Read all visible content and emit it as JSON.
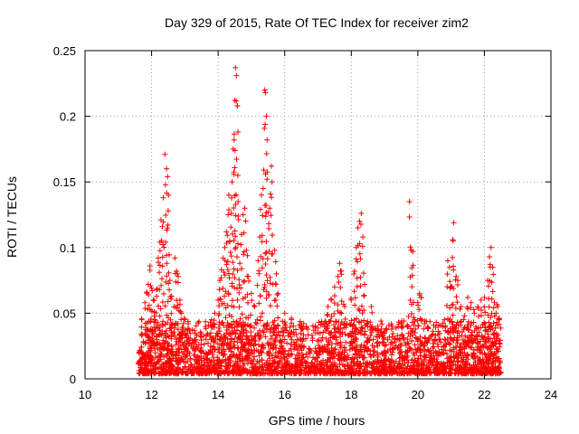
{
  "chart_data": {
    "type": "scatter",
    "title": "Day 329 of 2015, Rate Of TEC Index for receiver zim2",
    "xlabel": "GPS time / hours",
    "ylabel": "ROTI / TECUs",
    "xlim": [
      10,
      24
    ],
    "ylim": [
      0,
      0.25
    ],
    "x_ticks": [
      "10",
      "12",
      "14",
      "16",
      "18",
      "20",
      "22",
      "24"
    ],
    "y_ticks": [
      "0",
      "0.05",
      "0.1",
      "0.15",
      "0.2",
      "0.25"
    ],
    "grid": true,
    "marker": "+",
    "series_color": "#ff0000",
    "data_range_x": [
      11.6,
      22.5
    ],
    "series": [
      {
        "points": [
          [
            11.7,
            0.045
          ],
          [
            11.8,
            0.058
          ],
          [
            11.85,
            0.066
          ],
          [
            11.9,
            0.072
          ],
          [
            11.95,
            0.086
          ],
          [
            12.0,
            0.069
          ],
          [
            12.05,
            0.06
          ],
          [
            12.1,
            0.045
          ],
          [
            12.15,
            0.068
          ],
          [
            12.2,
            0.092
          ],
          [
            12.25,
            0.104
          ],
          [
            12.28,
            0.121
          ],
          [
            12.32,
            0.116
          ],
          [
            12.35,
            0.138
          ],
          [
            12.4,
            0.171
          ],
          [
            12.45,
            0.16
          ],
          [
            12.48,
            0.154
          ],
          [
            12.5,
            0.128
          ],
          [
            12.55,
            0.075
          ],
          [
            12.6,
            0.063
          ],
          [
            12.7,
            0.092
          ],
          [
            12.75,
            0.082
          ],
          [
            12.8,
            0.078
          ],
          [
            12.85,
            0.06
          ],
          [
            12.9,
            0.05
          ],
          [
            13.0,
            0.045
          ],
          [
            13.1,
            0.042
          ],
          [
            13.3,
            0.03
          ],
          [
            13.5,
            0.032
          ],
          [
            13.8,
            0.045
          ],
          [
            13.9,
            0.05
          ],
          [
            14.0,
            0.06
          ],
          [
            14.05,
            0.075
          ],
          [
            14.1,
            0.083
          ],
          [
            14.15,
            0.092
          ],
          [
            14.2,
            0.1
          ],
          [
            14.25,
            0.112
          ],
          [
            14.3,
            0.125
          ],
          [
            14.32,
            0.14
          ],
          [
            14.35,
            0.105
          ],
          [
            14.4,
            0.126
          ],
          [
            14.42,
            0.15
          ],
          [
            14.45,
            0.175
          ],
          [
            14.48,
            0.182
          ],
          [
            14.5,
            0.212
          ],
          [
            14.52,
            0.237
          ],
          [
            14.55,
            0.231
          ],
          [
            14.58,
            0.208
          ],
          [
            14.6,
            0.135
          ],
          [
            14.65,
            0.088
          ],
          [
            14.7,
            0.11
          ],
          [
            14.75,
            0.125
          ],
          [
            14.8,
            0.13
          ],
          [
            14.85,
            0.098
          ],
          [
            14.9,
            0.078
          ],
          [
            15.0,
            0.065
          ],
          [
            15.1,
            0.055
          ],
          [
            15.2,
            0.09
          ],
          [
            15.25,
            0.108
          ],
          [
            15.3,
            0.14
          ],
          [
            15.35,
            0.145
          ],
          [
            15.4,
            0.22
          ],
          [
            15.42,
            0.218
          ],
          [
            15.45,
            0.2
          ],
          [
            15.47,
            0.182
          ],
          [
            15.5,
            0.127
          ],
          [
            15.55,
            0.13
          ],
          [
            15.6,
            0.162
          ],
          [
            15.62,
            0.15
          ],
          [
            15.7,
            0.098
          ],
          [
            15.75,
            0.08
          ],
          [
            15.8,
            0.065
          ],
          [
            16.0,
            0.05
          ],
          [
            16.2,
            0.045
          ],
          [
            16.5,
            0.042
          ],
          [
            17.0,
            0.035
          ],
          [
            17.3,
            0.055
          ],
          [
            17.4,
            0.06
          ],
          [
            17.5,
            0.07
          ],
          [
            17.6,
            0.078
          ],
          [
            17.65,
            0.088
          ],
          [
            17.7,
            0.082
          ],
          [
            17.8,
            0.055
          ],
          [
            18.0,
            0.06
          ],
          [
            18.1,
            0.082
          ],
          [
            18.15,
            0.1
          ],
          [
            18.2,
            0.115
          ],
          [
            18.25,
            0.12
          ],
          [
            18.3,
            0.126
          ],
          [
            18.35,
            0.108
          ],
          [
            18.4,
            0.072
          ],
          [
            18.6,
            0.055
          ],
          [
            18.8,
            0.04
          ],
          [
            19.0,
            0.035
          ],
          [
            19.5,
            0.04
          ],
          [
            19.75,
            0.135
          ],
          [
            19.8,
            0.098
          ],
          [
            19.85,
            0.097
          ],
          [
            19.9,
            0.045
          ],
          [
            20.0,
            0.058
          ],
          [
            20.05,
            0.065
          ],
          [
            20.1,
            0.062
          ],
          [
            20.2,
            0.042
          ],
          [
            20.5,
            0.03
          ],
          [
            20.8,
            0.045
          ],
          [
            20.9,
            0.09
          ],
          [
            20.95,
            0.085
          ],
          [
            21.0,
            0.07
          ],
          [
            21.05,
            0.106
          ],
          [
            21.08,
            0.119
          ],
          [
            21.15,
            0.078
          ],
          [
            21.2,
            0.075
          ],
          [
            21.3,
            0.055
          ],
          [
            21.4,
            0.048
          ],
          [
            21.5,
            0.062
          ],
          [
            21.6,
            0.058
          ],
          [
            21.7,
            0.05
          ],
          [
            21.8,
            0.055
          ],
          [
            21.9,
            0.06
          ],
          [
            22.0,
            0.062
          ],
          [
            22.1,
            0.075
          ],
          [
            22.15,
            0.093
          ],
          [
            22.2,
            0.1
          ],
          [
            22.25,
            0.085
          ],
          [
            22.3,
            0.058
          ],
          [
            22.35,
            0.05
          ],
          [
            22.4,
            0.055
          ],
          [
            22.45,
            0.045
          ]
        ]
      }
    ]
  }
}
